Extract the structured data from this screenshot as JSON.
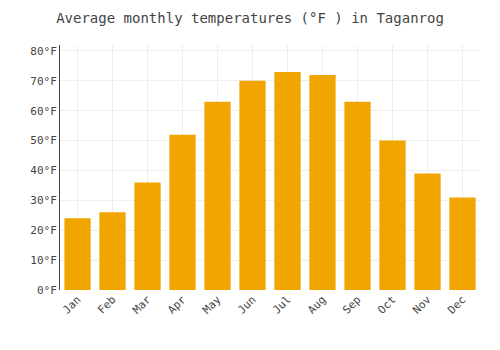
{
  "chart_data": {
    "type": "bar",
    "title": "Average monthly temperatures (°F ) in Taganrog",
    "categories": [
      "Jan",
      "Feb",
      "Mar",
      "Apr",
      "May",
      "Jun",
      "Jul",
      "Aug",
      "Sep",
      "Oct",
      "Nov",
      "Dec"
    ],
    "values": [
      24,
      26,
      36,
      52,
      63,
      70,
      73,
      72,
      63,
      50,
      39,
      31
    ],
    "color": "#F0A500",
    "ylim": [
      0,
      82
    ],
    "yticks": [
      {
        "value": 0,
        "label": "0°F"
      },
      {
        "value": 10,
        "label": "10°F"
      },
      {
        "value": 20,
        "label": "20°F"
      },
      {
        "value": 30,
        "label": "30°F"
      },
      {
        "value": 40,
        "label": "40°F"
      },
      {
        "value": 50,
        "label": "50°F"
      },
      {
        "value": 60,
        "label": "60°F"
      },
      {
        "value": 70,
        "label": "70°F"
      },
      {
        "value": 80,
        "label": "80°F"
      }
    ],
    "grid": true
  }
}
